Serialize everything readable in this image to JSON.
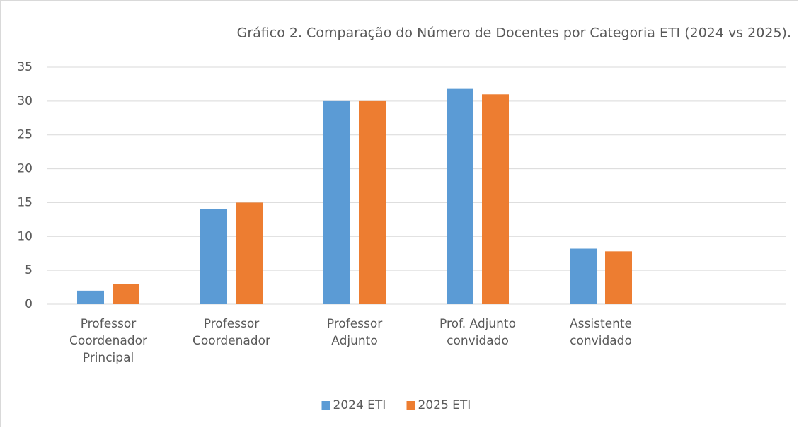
{
  "chart_data": {
    "type": "bar",
    "title": "Gráfico 2. Comparação do Número de Docentes por Categoria ETI (2024 vs 2025).",
    "categories": [
      "Professor\nCoordenador\nPrincipal",
      "Professor\nCoordenador",
      "Professor\nAdjunto",
      "Prof. Adjunto\nconvidado",
      "Assistente\nconvidado",
      null
    ],
    "series": [
      {
        "name": "2024 ETI",
        "color": "#5b9bd5",
        "values": [
          2,
          14,
          30,
          31.8,
          8.2,
          null
        ]
      },
      {
        "name": "2025 ETI",
        "color": "#ed7d31",
        "values": [
          3,
          15,
          30,
          31,
          7.8,
          null
        ]
      }
    ],
    "ylim": [
      0,
      35
    ],
    "yticks": [
      0,
      5,
      10,
      15,
      20,
      25,
      30,
      35
    ],
    "grid": true,
    "legend": "bottom"
  }
}
